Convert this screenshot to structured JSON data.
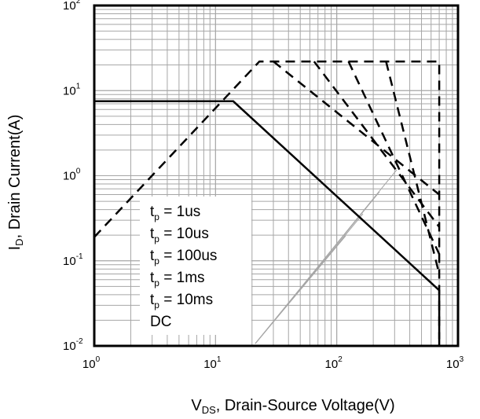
{
  "chart_data": {
    "type": "line",
    "xscale": "log",
    "yscale": "log",
    "xlim": [
      1,
      1000
    ],
    "ylim": [
      0.01,
      100
    ],
    "grid": true,
    "x_ticks": [
      {
        "base": "10",
        "exp": "0",
        "value": 1
      },
      {
        "base": "10",
        "exp": "1",
        "value": 10
      },
      {
        "base": "10",
        "exp": "2",
        "value": 100
      },
      {
        "base": "10",
        "exp": "3",
        "value": 1000
      }
    ],
    "y_ticks": [
      {
        "base": "10",
        "exp": "2",
        "value": 100
      },
      {
        "base": "10",
        "exp": "1",
        "value": 10
      },
      {
        "base": "10",
        "exp": "0",
        "value": 1
      },
      {
        "base": "10",
        "exp": "-1",
        "value": 0.1
      },
      {
        "base": "10",
        "exp": "-2",
        "value": 0.01
      }
    ],
    "xlabel": {
      "main": "V",
      "sub": "DS",
      "rest": ", Drain-Source Voltage(V)"
    },
    "ylabel": {
      "main": "I",
      "sub": "D",
      "rest": ", Drain Current(A)"
    },
    "legend": [
      {
        "prefix": "t",
        "sub": "p",
        "text": " = 1us"
      },
      {
        "prefix": "t",
        "sub": "p",
        "text": " = 10us"
      },
      {
        "prefix": "t",
        "sub": "p",
        "text": " = 100us"
      },
      {
        "prefix": "t",
        "sub": "p",
        "text": " = 1ms"
      },
      {
        "prefix": "t",
        "sub": "p",
        "text": " = 10ms"
      },
      {
        "prefix": "",
        "sub": "",
        "text": "DC"
      }
    ],
    "series": [
      {
        "style": "dashed",
        "points": [
          [
            1,
            0.19
          ],
          [
            23,
            22
          ],
          [
            700,
            22
          ],
          [
            700,
            0.012
          ]
        ]
      },
      {
        "style": "dashed",
        "points": [
          [
            30,
            22
          ],
          [
            700,
            0.6
          ]
        ]
      },
      {
        "style": "dashed",
        "points": [
          [
            65,
            22
          ],
          [
            700,
            0.25
          ]
        ]
      },
      {
        "style": "dashed",
        "points": [
          [
            125,
            22
          ],
          [
            700,
            0.12
          ]
        ]
      },
      {
        "style": "dashed",
        "points": [
          [
            255,
            22
          ],
          [
            700,
            0.07
          ]
        ]
      },
      {
        "style": "solid",
        "points": [
          [
            1,
            7.5
          ],
          [
            14,
            7.5
          ],
          [
            700,
            0.045
          ],
          [
            700,
            0.01
          ]
        ]
      }
    ],
    "colors": {
      "curve": "#000000",
      "grid": "#a6a6a6",
      "frame": "#000000"
    }
  }
}
